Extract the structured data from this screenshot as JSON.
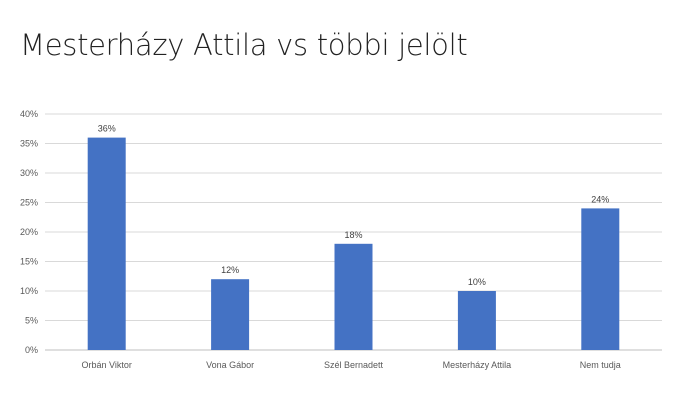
{
  "slide": {
    "title": "Mesterházy Attila vs többi jelölt"
  },
  "chart_data": {
    "type": "bar",
    "categories": [
      "Orbán Viktor",
      "Vona Gábor",
      "Szél Bernadett",
      "Mesterházy Attila",
      "Nem tudja"
    ],
    "values": [
      36,
      12,
      18,
      10,
      24
    ],
    "data_labels": [
      "36%",
      "12%",
      "18%",
      "10%",
      "24%"
    ],
    "y_ticks": [
      0,
      5,
      10,
      15,
      20,
      25,
      30,
      35,
      40
    ],
    "y_tick_labels": [
      "0%",
      "5%",
      "10%",
      "15%",
      "20%",
      "25%",
      "30%",
      "35%",
      "40%"
    ],
    "ylim": [
      0,
      40
    ],
    "grid": true,
    "legend": "none",
    "bar_color": "#4472C4",
    "gridline_color": "#D9D9D9",
    "axis_color": "#BFBFBF"
  }
}
